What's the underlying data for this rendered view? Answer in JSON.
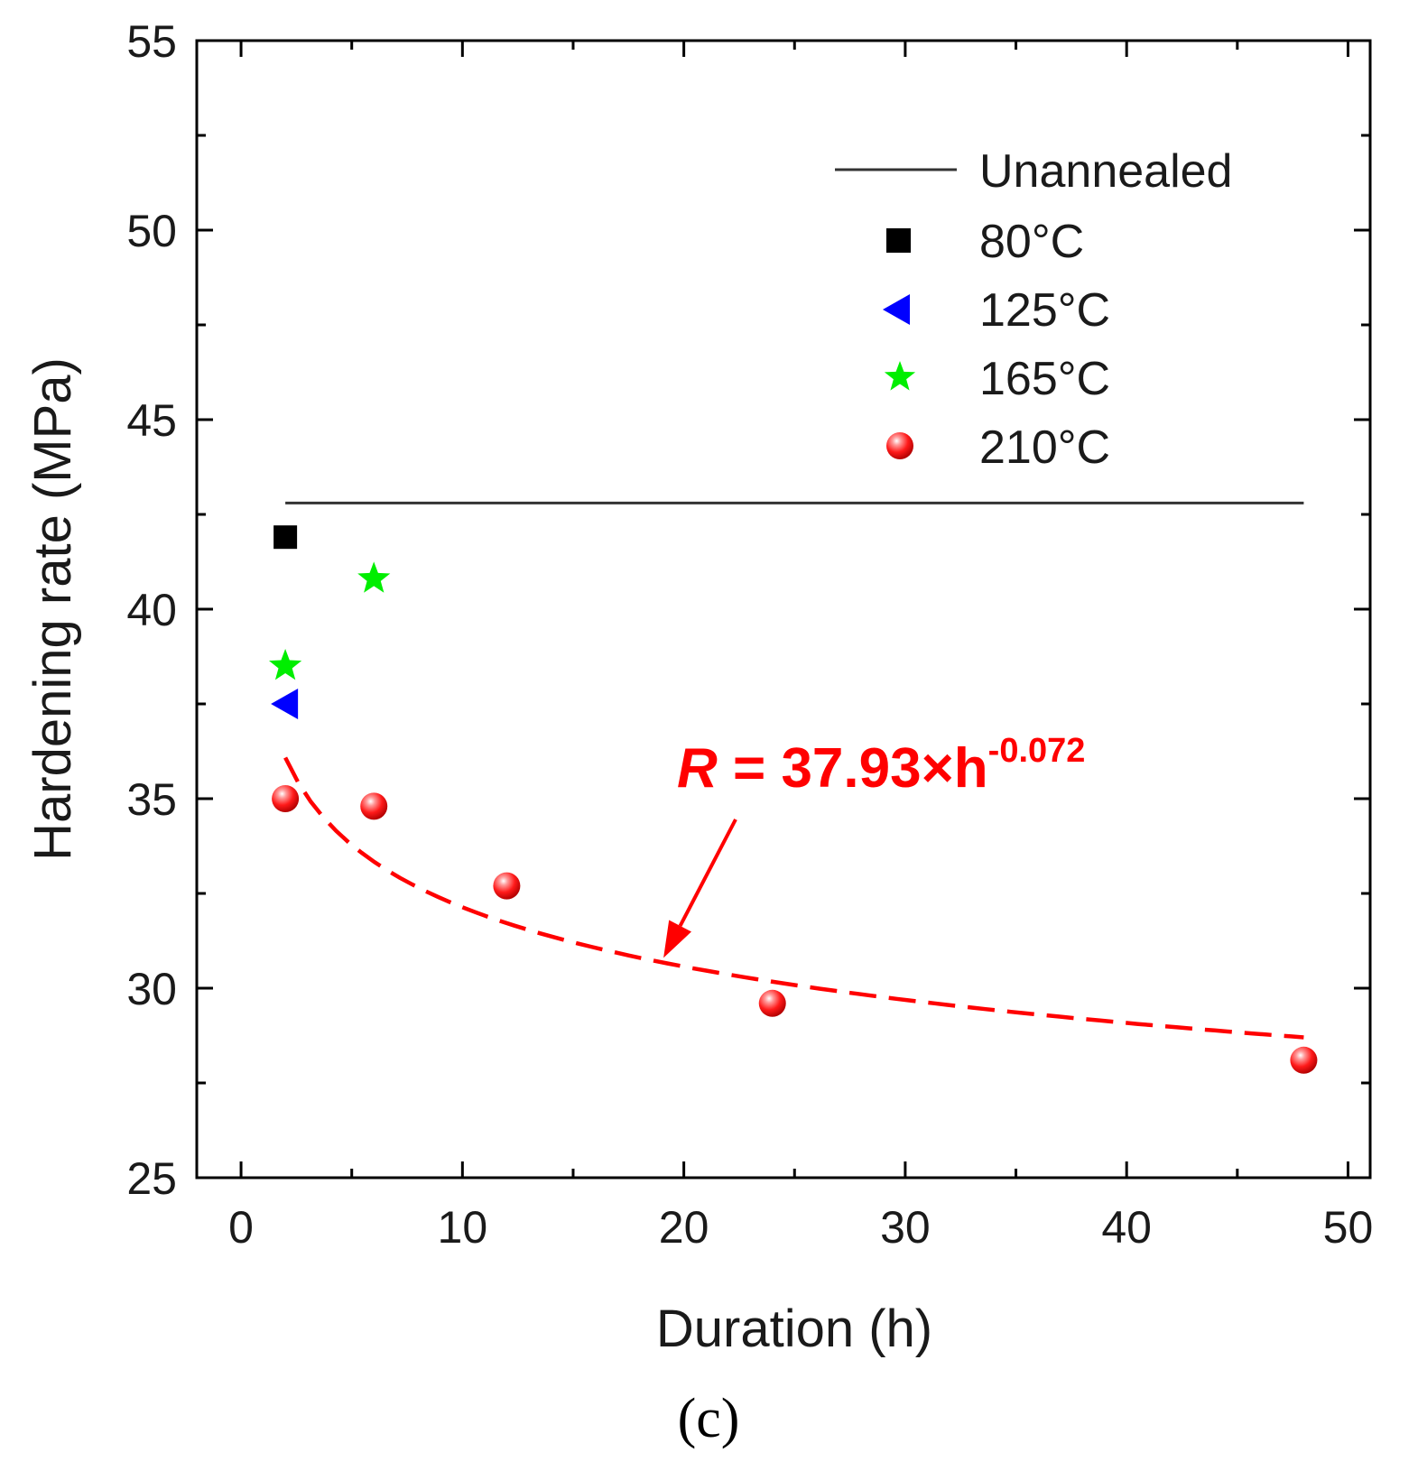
{
  "colors": {
    "axis": "#000000",
    "unannealed": "#333333",
    "c80": "#000000",
    "c125": "#0000ff",
    "c165": "#00ff00",
    "c210": "#ff0000",
    "fit": "#ff0000"
  },
  "chart_data": {
    "type": "scatter",
    "title": "",
    "xlabel": "Duration (h)",
    "ylabel": "Hardening rate (MPa)",
    "xlim": [
      -2,
      51
    ],
    "ylim": [
      25,
      55
    ],
    "x_ticks": [
      0,
      10,
      20,
      30,
      40,
      50
    ],
    "y_ticks": [
      25,
      30,
      35,
      40,
      45,
      50,
      55
    ],
    "x_minor_ticks": [
      5,
      15,
      25,
      35,
      45
    ],
    "y_minor_ticks": [
      27.5,
      32.5,
      37.5,
      42.5,
      47.5,
      52.5
    ],
    "grid": false,
    "legend_position": "top-right",
    "series": [
      {
        "name": "Unannealed",
        "kind": "hline",
        "y": 42.8,
        "x_range": [
          2,
          48
        ],
        "color": "#333333"
      },
      {
        "name": "80°C",
        "marker": "square",
        "color": "#000000",
        "x": [
          2
        ],
        "y": [
          41.9
        ]
      },
      {
        "name": "125°C",
        "marker": "triangle-left",
        "color": "#0000ff",
        "x": [
          2
        ],
        "y": [
          37.5
        ]
      },
      {
        "name": "165°C",
        "marker": "star",
        "color": "#00ff00",
        "x": [
          2,
          6
        ],
        "y": [
          38.5,
          40.8
        ]
      },
      {
        "name": "210°C",
        "marker": "sphere",
        "color": "#ff0000",
        "x": [
          2,
          6,
          12,
          24,
          48
        ],
        "y": [
          35.0,
          34.8,
          32.7,
          29.6,
          28.1
        ]
      }
    ],
    "fit": {
      "coefficient": 37.93,
      "exponent": -0.072,
      "x_range": [
        2,
        48
      ],
      "label_R": "R",
      "label_eq": " = 37.93×h",
      "label_exp": "-0.072",
      "arrow_target": [
        19,
        30.8
      ]
    },
    "panel_label": "(c)"
  }
}
